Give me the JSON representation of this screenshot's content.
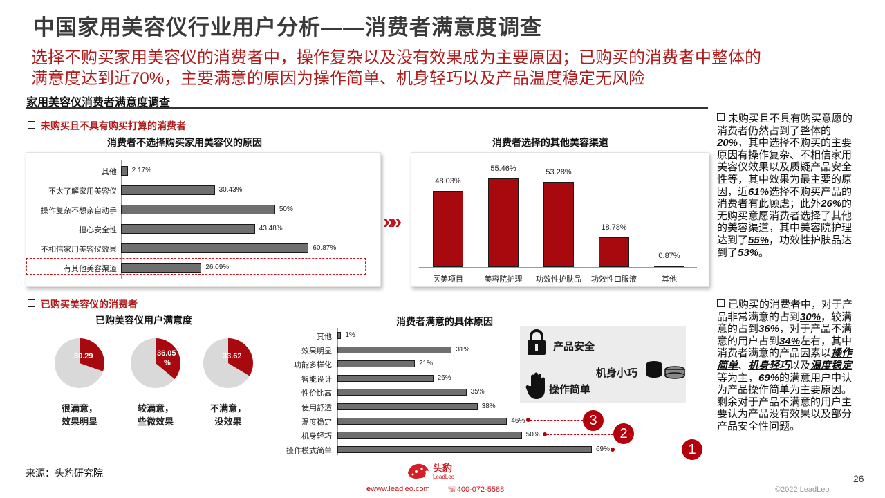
{
  "title": "中国家用美容仪行业用户分析——消费者满意度调查",
  "subtitle_line1": "选择不购买家用美容仪的消费者中，操作复杂以及没有效果成为主要原因；已购买的消费者中整体的",
  "subtitle_line2": "满意度达到近70%，主要满意的原因为操作简单、机身轻巧以及产品温度稳定无风险",
  "section_title": "家用美容仪消费者满意度调查",
  "group1": "未购买且不具有购买打算的消费者",
  "group2": "已购买美容仪的消费者",
  "arrows": "»»",
  "chart_data": [
    {
      "type": "bar",
      "orientation": "horizontal",
      "title": "消费者不选择购买家用美容仪的原因",
      "categories": [
        "其他",
        "不太了解家用美容仪",
        "操作复杂不想亲自动手",
        "担心安全性",
        "不相信家用美容仪效果",
        "有其他美容渠道"
      ],
      "values": [
        2.17,
        30.43,
        50,
        43.48,
        60.87,
        26.09
      ],
      "value_labels": [
        "2.17%",
        "30.43%",
        "50%",
        "43.48%",
        "60.87%",
        "26.09%"
      ],
      "highlight": "有其他美容渠道",
      "xlim": [
        0,
        70
      ]
    },
    {
      "type": "bar",
      "orientation": "vertical",
      "title": "消费者选择的其他美容渠道",
      "categories": [
        "医美项目",
        "美容院护理",
        "功效性护肤品",
        "功效性口服液",
        "其他"
      ],
      "values": [
        48.03,
        55.46,
        53.28,
        18.78,
        0.87
      ],
      "value_labels": [
        "48.03%",
        "55.46%",
        "53.28%",
        "18.78%",
        "0.87%"
      ],
      "ylim": [
        0,
        60
      ]
    },
    {
      "type": "pie",
      "title": "已购美容仪用户满意度",
      "pies": [
        {
          "label_line1": "很满意，",
          "label_line2": "效果明显",
          "value": 30.29,
          "value_label": "30.29"
        },
        {
          "label_line1": "较满意，",
          "label_line2": "些微效果",
          "value": 36.05,
          "value_label_line1": "36.05",
          "value_label_line2": "%"
        },
        {
          "label_line1": "不满意，",
          "label_line2": "没效果",
          "value": 33.62,
          "value_label": "33.62"
        }
      ]
    },
    {
      "type": "bar",
      "orientation": "horizontal",
      "title": "消费者满意的具体原因",
      "categories": [
        "其他",
        "效果明显",
        "功能多样化",
        "智能设计",
        "性价比高",
        "使用舒适",
        "温度稳定",
        "机身轻巧",
        "操作模式简单"
      ],
      "values": [
        1,
        31,
        21,
        26,
        35,
        38,
        46,
        50,
        69
      ],
      "value_labels": [
        "1%",
        "31%",
        "21%",
        "26%",
        "35%",
        "38%",
        "46%",
        "50%",
        "69%"
      ],
      "xlim": [
        0,
        72
      ]
    }
  ],
  "callouts": [
    "3",
    "2",
    "1"
  ],
  "legend_box": {
    "safety": "产品安全",
    "light": "机身小巧",
    "simple": "操作简单"
  },
  "side": {
    "p1_a": "未购买且不具有购买意愿的消费者仍然占到了整体的",
    "p1_v1": "20%",
    "p1_b": "，其中选择不购买的主要原因有操作复杂、不相信家用美容仪效果以及质疑产品安全性等，其中效果为最主要的原因，近",
    "p1_v2": "61%",
    "p1_c": "选择不购买产品的消费者有此顾虑；此外",
    "p1_v3": "26%",
    "p1_d": "的无购买意愿消费者选择了其他的美容渠道，其中美容院护理达到了",
    "p1_v4": "55%",
    "p1_e": "，功效性护肤品达到了",
    "p1_v5": "53%",
    "p1_f": "。",
    "p2_a": "已购买的消费者中，对于产品非常满意的占到",
    "p2_v1": "30%",
    "p2_b": "，较满意的占到",
    "p2_v2": "36%",
    "p2_c": "，对于产品不满意的用户占到",
    "p2_v3": "34%",
    "p2_d": "左右，其中消费者满意的产品因素以",
    "p2_v4": "操作简单",
    "p2_e": "、",
    "p2_v5": "机身轻巧",
    "p2_f": "以及",
    "p2_v6": "温度稳定",
    "p2_g": "等为主，",
    "p2_v7": "69%",
    "p2_h": "的满意用户中认为产品操作简单为主要原因。剩余对于产品不满意的用户主要认为产品没有效果以及部分产品安全性问题。"
  },
  "footer": {
    "source": "来源：头豹研究院",
    "brand_cn": "头豹",
    "brand_en": "LeadLeo",
    "website": "www.leadleo.com",
    "phone": "400-072-5588",
    "page": "26",
    "copyright": "©2022 LeadLeo"
  },
  "colors": {
    "accent": "#b01a1a",
    "bar_red": "#a8090f",
    "bar_gray": "#6f6f6f",
    "pie_gray": "#d9d9d9"
  }
}
